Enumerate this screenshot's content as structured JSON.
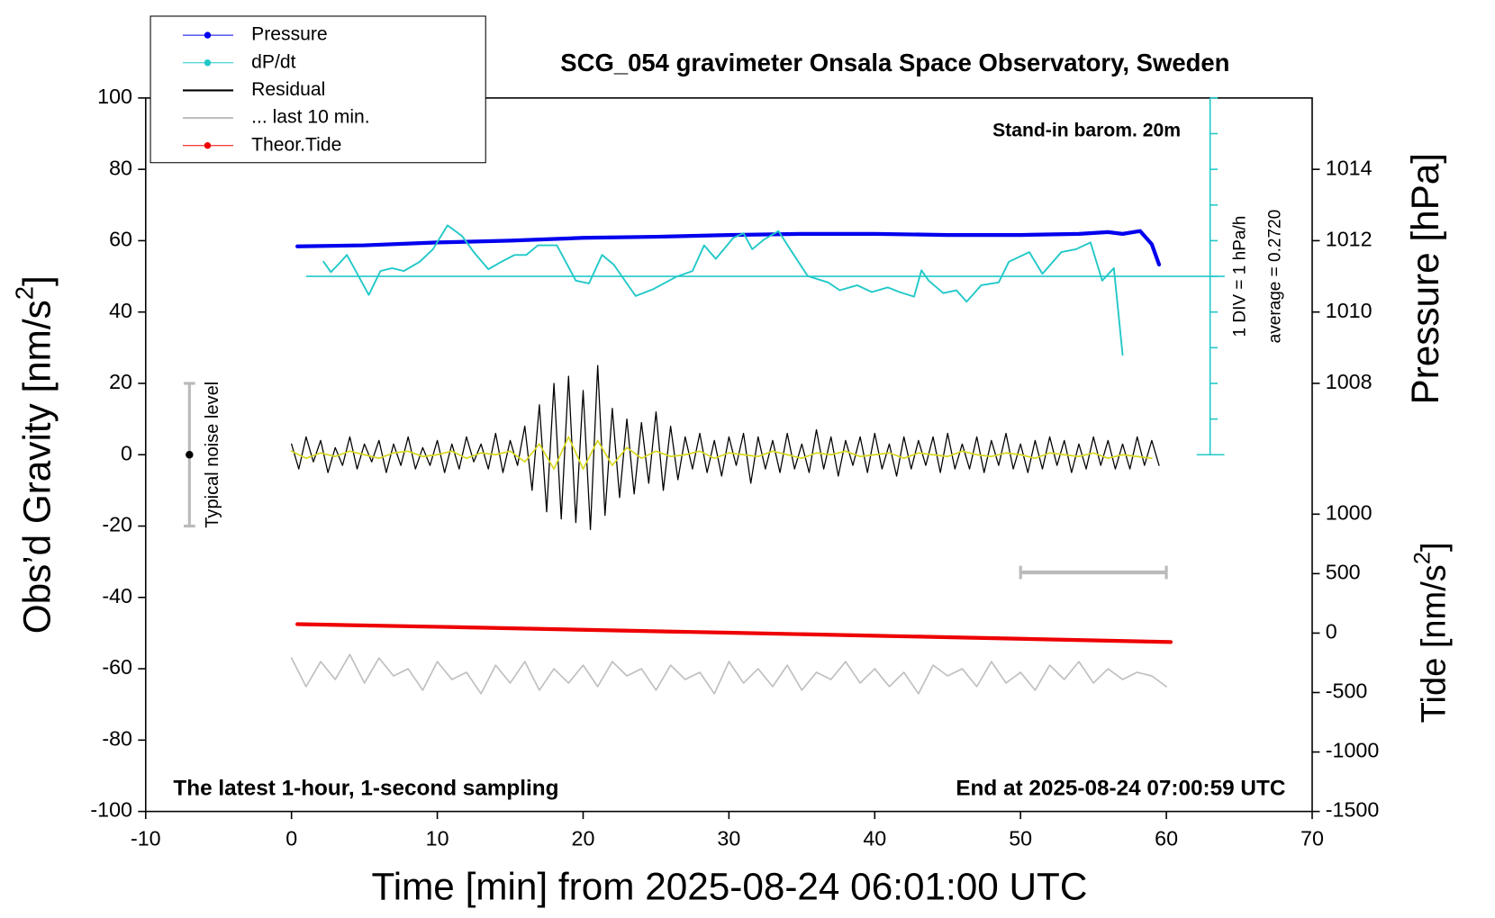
{
  "chart_data": {
    "type": "line",
    "title": "SCG_054 gravimeter Onsala Space Observatory, Sweden",
    "note_top_right": "Stand-in barom. 20m",
    "note_bottom_left": "The latest 1-hour, 1-second sampling",
    "note_bottom_right": "End at 2025-08-24 07:00:59 UTC",
    "xlabel": "Time [min] from 2025-08-24 06:01:00 UTC",
    "ylabel": {
      "text": "Obs’d Gravity [nm/s",
      "sup": "2",
      "end": "]"
    },
    "y2label": "Pressure [hPa]",
    "y3label": {
      "text": "Tide [nm/s",
      "sup": "2",
      "end": "]"
    },
    "xlim": [
      -10,
      70
    ],
    "xticks": [
      -10,
      0,
      10,
      20,
      30,
      40,
      50,
      60,
      70
    ],
    "ylim": [
      -100,
      100
    ],
    "yticks": [
      -100,
      -80,
      -60,
      -40,
      -20,
      0,
      20,
      40,
      60,
      80,
      100
    ],
    "y2lim": [
      996,
      1016
    ],
    "y2ticks": [
      1008,
      1010,
      1012,
      1014
    ],
    "y3lim": [
      -1500,
      4500
    ],
    "y3ticks": [
      -1500,
      -1000,
      -500,
      0,
      500,
      1000
    ],
    "legend": "upper left",
    "series": [
      {
        "name": "Pressure",
        "color": "#0000ee",
        "marker": true,
        "axis": "y2",
        "x": [
          0.4,
          5,
          10,
          15,
          20,
          25,
          30,
          35,
          40,
          45,
          50,
          54,
          56,
          57,
          58.2,
          59,
          59.5
        ],
        "values": [
          1011.84,
          1011.87,
          1011.95,
          1012.0,
          1012.08,
          1012.11,
          1012.16,
          1012.19,
          1012.19,
          1012.16,
          1012.16,
          1012.19,
          1012.24,
          1012.19,
          1012.27,
          1011.9,
          1011.33
        ]
      },
      {
        "name": "dP/dt",
        "color": "#22c8c8",
        "marker": true,
        "x": [
          2.2,
          2.7,
          3.2,
          3.8,
          4.3,
          5.3,
          6.1,
          6.9,
          7.7,
          8.8,
          9.7,
          10.7,
          11.7,
          12.5,
          13.5,
          14.4,
          15.3,
          16.1,
          16.9,
          18.2,
          19.5,
          20.4,
          21.3,
          22.1,
          23.6,
          24.8,
          26.4,
          27.5,
          28.3,
          29.1,
          30.3,
          31.0,
          31.6,
          32.4,
          33.4,
          34.2,
          35.4,
          36.8,
          37.6,
          38.8,
          39.8,
          40.9,
          41.7,
          42.7,
          43.2,
          43.7,
          44.7,
          45.6,
          46.3,
          47.3,
          48.5,
          49.2,
          50.6,
          51.5,
          52.8,
          53.8,
          54.8,
          55.6,
          56.4,
          57.0
        ],
        "values": [
          54.1,
          51.2,
          53.3,
          56.0,
          52.3,
          44.8,
          51.5,
          52.3,
          51.5,
          54.1,
          57.6,
          64.3,
          61.3,
          56.8,
          52.0,
          54.1,
          56.0,
          56.0,
          58.7,
          58.7,
          48.8,
          48.0,
          56.0,
          53.3,
          44.5,
          46.4,
          49.9,
          51.5,
          58.7,
          54.9,
          60.8,
          62.1,
          57.6,
          60.3,
          62.7,
          57.6,
          50.1,
          48.3,
          46.1,
          47.5,
          45.6,
          46.9,
          45.6,
          44.3,
          51.7,
          48.8,
          45.3,
          46.1,
          42.9,
          47.5,
          48.3,
          54.1,
          56.8,
          50.7,
          56.8,
          57.6,
          59.5,
          48.8,
          52.3,
          28.0
        ]
      },
      {
        "name": "Residual",
        "color": "#000000",
        "x": [
          0,
          0.5,
          1,
          1.5,
          2,
          2.5,
          3,
          3.5,
          4,
          4.5,
          5,
          5.5,
          6,
          6.5,
          7,
          7.5,
          8,
          8.5,
          9,
          9.5,
          10,
          10.5,
          11,
          11.5,
          12,
          12.5,
          13,
          13.5,
          14,
          14.5,
          15,
          15.5,
          16,
          16.5,
          17,
          17.5,
          18,
          18.5,
          19,
          19.5,
          20,
          20.5,
          21,
          21.5,
          22,
          22.5,
          23,
          23.5,
          24,
          24.5,
          25,
          25.5,
          26,
          26.5,
          27,
          27.5,
          28,
          28.5,
          29,
          29.5,
          30,
          30.5,
          31,
          31.5,
          32,
          32.5,
          33,
          33.5,
          34,
          34.5,
          35,
          35.5,
          36,
          36.5,
          37,
          37.5,
          38,
          38.5,
          39,
          39.5,
          40,
          40.5,
          41,
          41.5,
          42,
          42.5,
          43,
          43.5,
          44,
          44.5,
          45,
          45.5,
          46,
          46.5,
          47,
          47.5,
          48,
          48.5,
          49,
          49.5,
          50,
          50.5,
          51,
          51.5,
          52,
          52.5,
          53,
          53.5,
          54,
          54.5,
          55,
          55.5,
          56,
          56.5,
          57,
          57.5,
          58,
          58.5,
          59,
          59.5
        ],
        "values": [
          3,
          -4,
          5,
          -2,
          4,
          -5,
          2,
          -3,
          5,
          -4,
          3,
          -2,
          4,
          -5,
          3,
          -3,
          5,
          -4,
          2,
          -3,
          4,
          -5,
          3,
          -4,
          5,
          -2,
          3,
          -4,
          6,
          -5,
          4,
          -3,
          8,
          -10,
          14,
          -16,
          20,
          -18,
          22,
          -19,
          18,
          -21,
          25,
          -17,
          13,
          -12,
          10,
          -11,
          9,
          -8,
          12,
          -10,
          8,
          -7,
          5,
          -4,
          6,
          -5,
          4,
          -6,
          5,
          -3,
          6,
          -8,
          5,
          -4,
          4,
          -5,
          6,
          -4,
          3,
          -5,
          7,
          -4,
          5,
          -6,
          4,
          -3,
          5,
          -5,
          6,
          -4,
          3,
          -6,
          5,
          -4,
          4,
          -3,
          5,
          -5,
          6,
          -4,
          3,
          -4,
          5,
          -5,
          4,
          -3,
          6,
          -4,
          3,
          -5,
          4,
          -4,
          5,
          -3,
          4,
          -5,
          3,
          -4,
          5,
          -3,
          4,
          -4,
          3,
          -4,
          5,
          -3,
          4,
          -3
        ]
      },
      {
        "color": "#d8d820",
        "x": [
          0,
          1,
          2,
          3,
          4,
          5,
          6,
          7,
          8,
          9,
          10,
          11,
          12,
          13,
          14,
          15,
          16,
          17,
          18,
          19,
          20,
          21,
          22,
          23,
          24,
          25,
          26,
          27,
          28,
          29,
          30,
          31,
          32,
          33,
          34,
          35,
          36,
          37,
          38,
          39,
          40,
          41,
          42,
          43,
          44,
          45,
          46,
          47,
          48,
          49,
          50,
          51,
          52,
          53,
          54,
          55,
          56,
          57,
          58,
          59
        ],
        "values": [
          1,
          -1,
          0.5,
          -0.5,
          1,
          0,
          -1,
          0.5,
          1,
          -0.5,
          0,
          1,
          -1,
          0.5,
          0,
          1,
          -2,
          3,
          -4,
          5,
          -4,
          4,
          -3,
          2,
          -1,
          1,
          -0.5,
          0,
          1,
          -1,
          0.5,
          0,
          -0.5,
          1,
          0,
          -1,
          0.5,
          0,
          1,
          -0.5,
          0,
          0.5,
          -1,
          0.5,
          0,
          -0.5,
          1,
          0,
          -0.5,
          0.5,
          0,
          -1,
          0.5,
          0,
          -0.5,
          0.5,
          -1,
          0,
          -0.5,
          -1
        ]
      },
      {
        "name": "... last 10 min.",
        "color": "#c0c0c0",
        "x": [
          0,
          1,
          2,
          3,
          4,
          5,
          6,
          7,
          8,
          9,
          10,
          11,
          12,
          13,
          14,
          15,
          16,
          17,
          18,
          19,
          20,
          21,
          22,
          23,
          24,
          25,
          26,
          27,
          28,
          29,
          30,
          31,
          32,
          33,
          34,
          35,
          36,
          37,
          38,
          39,
          40,
          41,
          42,
          43,
          44,
          45,
          46,
          47,
          48,
          49,
          50,
          51,
          52,
          53,
          54,
          55,
          56,
          57,
          58,
          59,
          60
        ],
        "values": [
          -57,
          -65,
          -58,
          -63,
          -56,
          -64,
          -57,
          -62,
          -60,
          -66,
          -58,
          -63,
          -61,
          -67,
          -59,
          -64,
          -58,
          -66,
          -60,
          -64,
          -59,
          -65,
          -58,
          -62,
          -60,
          -66,
          -59,
          -63,
          -61,
          -67,
          -58,
          -64,
          -60,
          -65,
          -59,
          -66,
          -61,
          -63,
          -58,
          -64,
          -60,
          -65,
          -61,
          -67,
          -59,
          -62,
          -60,
          -65,
          -58,
          -64,
          -61,
          -66,
          -59,
          -63,
          -58,
          -64,
          -60,
          -63,
          -61,
          -62,
          -65
        ]
      },
      {
        "name": "Theor.Tide",
        "color": "#ee0000",
        "marker": true,
        "axis": "y3",
        "x": [
          0.4,
          10,
          20,
          30,
          40,
          50,
          60.3
        ],
        "values": [
          75,
          53,
          28,
          3,
          -22,
          -48,
          -75
        ]
      }
    ],
    "dpdt_axis": {
      "color": "#22c8c8",
      "x": 63,
      "lim": [
        0,
        100
      ],
      "ticks": [
        0,
        10,
        20,
        30,
        40,
        50,
        60,
        70,
        80,
        90,
        100
      ],
      "ref": 50,
      "ref_span": [
        1,
        64
      ],
      "div_label": "1 DIV = 1 hPa/h",
      "average_label": "average = 0.2720"
    },
    "noise_bar": {
      "x": -7,
      "low": -20,
      "high": 20,
      "center": 0,
      "label": "Typical noise level"
    },
    "span_bar": {
      "x": [
        50,
        60
      ],
      "y": -33
    }
  }
}
